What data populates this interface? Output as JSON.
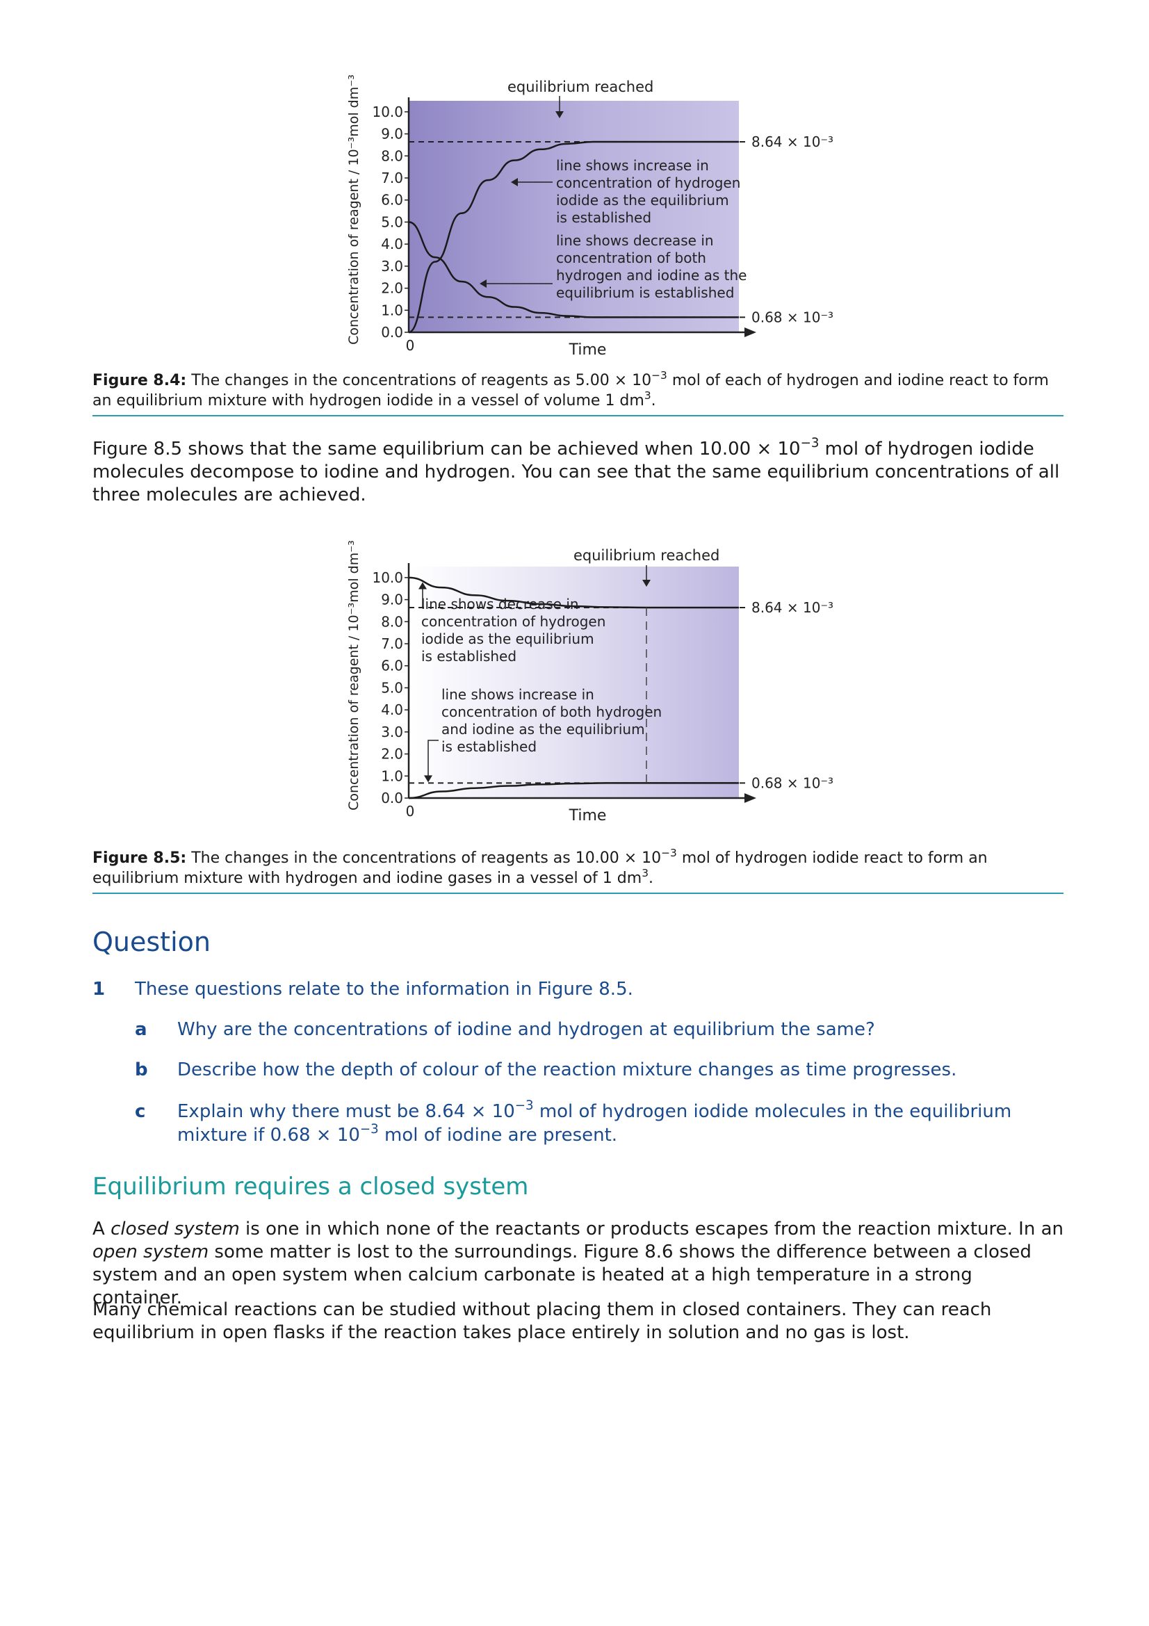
{
  "figure_8_4": {
    "chart_data": {
      "type": "line",
      "ylabel": "Concentration of reagent / 10⁻³mol dm⁻³",
      "xlabel": "Time",
      "x_origin_label": "0",
      "y_ticks": [
        "10.0",
        "9.0",
        "8.0",
        "7.0",
        "6.0",
        "5.0",
        "4.0",
        "3.0",
        "2.0",
        "1.0",
        "0.0"
      ],
      "ylim": [
        0,
        10.5
      ],
      "series": [
        {
          "x": [
            0,
            0.08,
            0.16,
            0.24,
            0.32,
            0.4,
            0.48,
            0.56,
            1.0
          ],
          "values": [
            0.0,
            3.2,
            5.4,
            6.9,
            7.8,
            8.3,
            8.55,
            8.64,
            8.64
          ]
        },
        {
          "x": [
            0,
            0.08,
            0.16,
            0.24,
            0.32,
            0.4,
            0.48,
            0.56,
            1.0
          ],
          "values": [
            5.0,
            3.4,
            2.3,
            1.6,
            1.15,
            0.88,
            0.74,
            0.68,
            0.68
          ]
        }
      ],
      "reference_lines": [
        {
          "value": 8.64,
          "label": "8.64 × 10⁻³"
        },
        {
          "value": 0.68,
          "label": "0.68 × 10⁻³"
        }
      ],
      "annotations": {
        "equilibrium": "equilibrium reached",
        "increase": [
          "line shows increase in",
          "concentration of hydrogen",
          "iodide as the equilibrium",
          "is established"
        ],
        "decrease": [
          "line shows decrease in",
          "concentration of both",
          "hydrogen and iodine as the",
          "equilibrium is established"
        ]
      }
    },
    "caption_label": "Figure 8.4:",
    "caption_text_1": "The changes in the concentrations of reagents as 5.00 × 10",
    "caption_exp_1": "−3",
    "caption_text_2": " mol of each of hydrogen and iodine react to form an equilibrium mixture with hydrogen iodide in a vessel of volume 1 dm",
    "caption_exp_2": "3",
    "caption_text_3": "."
  },
  "para_1": {
    "t1": "Figure 8.5 shows that the same equilibrium can be achieved when 10.00 × 10",
    "exp": "−3",
    "t2": " mol of hydrogen iodide molecules decompose to iodine and hydrogen. You can see that the same equilibrium concentrations of all three molecules are achieved."
  },
  "figure_8_5": {
    "chart_data": {
      "type": "line",
      "ylabel": "Concentration of reagent / 10⁻³mol dm⁻³",
      "xlabel": "Time",
      "x_origin_label": "0",
      "y_ticks": [
        "10.0",
        "9.0",
        "8.0",
        "7.0",
        "6.0",
        "5.0",
        "4.0",
        "3.0",
        "2.0",
        "1.0",
        "0.0"
      ],
      "ylim": [
        0,
        10.5
      ],
      "series": [
        {
          "x": [
            0,
            0.1,
            0.2,
            0.3,
            0.4,
            0.5,
            0.6,
            0.72,
            1.0
          ],
          "values": [
            10.0,
            9.55,
            9.2,
            8.95,
            8.8,
            8.7,
            8.66,
            8.64,
            8.64
          ]
        },
        {
          "x": [
            0,
            0.1,
            0.2,
            0.3,
            0.4,
            0.5,
            0.6,
            0.72,
            1.0
          ],
          "values": [
            0.0,
            0.3,
            0.45,
            0.55,
            0.62,
            0.66,
            0.68,
            0.68,
            0.68
          ]
        }
      ],
      "reference_lines": [
        {
          "value": 8.64,
          "label": "8.64 × 10⁻³"
        },
        {
          "value": 0.68,
          "label": "0.68 × 10⁻³"
        }
      ],
      "annotations": {
        "equilibrium": "equilibrium reached",
        "decrease": [
          "line shows decrease in",
          "concentration of hydrogen",
          "iodide as the equilibrium",
          "is established"
        ],
        "increase": [
          "line shows increase in",
          "concentration of both hydrogen",
          "and iodine as the equilibrium",
          "is established"
        ]
      }
    },
    "caption_label": "Figure 8.5:",
    "caption_text_1": "The changes in the concentrations of reagents as 10.00 × 10",
    "caption_exp_1": "−3",
    "caption_text_2": " mol of hydrogen iodide react to form an equilibrium mixture with hydrogen and iodine gases in a vessel of 1 dm",
    "caption_exp_2": "3",
    "caption_text_3": "."
  },
  "question": {
    "title": "Question",
    "number": "1",
    "intro": "These questions relate to the information in Figure 8.5.",
    "a_label": "a",
    "a_text": "Why are the concentrations of iodine and hydrogen at equilibrium the same?",
    "b_label": "b",
    "b_text": "Describe how the depth of colour of the reaction mixture changes as time progresses.",
    "c_label": "c",
    "c_t1": "Explain why there must be 8.64 × 10",
    "c_exp1": "−3",
    "c_t2": " mol of hydrogen iodide molecules in the equilibrium mixture if 0.68 × 10",
    "c_exp2": "−3",
    "c_t3": " mol of iodine are present."
  },
  "section": {
    "title": "Equilibrium requires a closed system",
    "p1_a": "A ",
    "p1_em1": "closed system",
    "p1_b": " is one in which none of the reactants or products escapes from the reaction mixture. In an ",
    "p1_em2": "open system",
    "p1_c": " some matter is lost to the surroundings. Figure 8.6 shows the difference between a closed system and an open system when calcium carbonate is heated at a high temperature in a strong container.",
    "p2": "Many chemical reactions can be studied without placing them in closed containers. They can reach equilibrium in open flasks if the reaction takes place entirely in solution and no gas is lost."
  }
}
